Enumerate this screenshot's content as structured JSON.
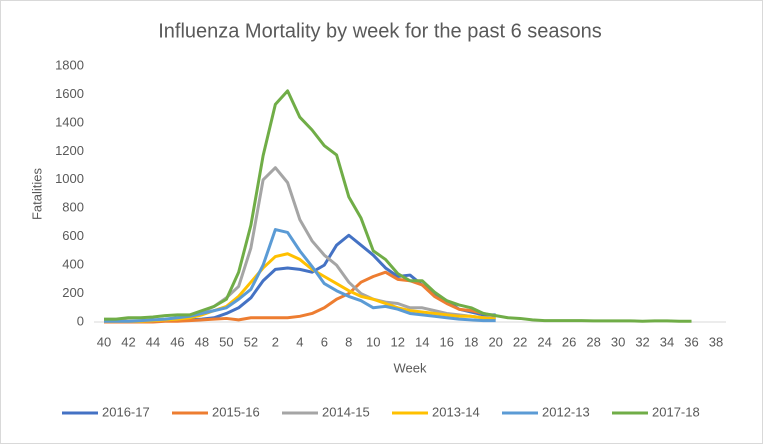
{
  "chart_data": {
    "type": "line",
    "title": "Influenza Mortality by week for the past 6 seasons",
    "x_label": "Week",
    "y_label": "Fatalities",
    "categories": [
      40,
      null,
      42,
      null,
      44,
      null,
      46,
      null,
      48,
      null,
      50,
      null,
      52,
      null,
      2,
      null,
      4,
      null,
      6,
      null,
      8,
      null,
      10,
      null,
      12,
      null,
      14,
      null,
      16,
      null,
      18,
      null,
      20,
      null,
      22,
      null,
      24,
      null,
      26,
      null,
      28,
      null,
      30,
      null,
      32,
      null,
      34,
      null,
      36,
      null,
      38
    ],
    "ylim": [
      0,
      1800
    ],
    "yticks": [
      0,
      200,
      400,
      600,
      800,
      1000,
      1200,
      1400,
      1600,
      1800
    ],
    "grid": false,
    "legend": "bottom",
    "series": [
      {
        "name": "2016-17",
        "color": "#4472c4",
        "values": [
          5,
          5,
          5,
          5,
          8,
          10,
          10,
          15,
          20,
          30,
          60,
          100,
          170,
          290,
          370,
          380,
          370,
          350,
          400,
          540,
          610,
          540,
          470,
          380,
          320,
          330,
          260,
          200,
          150,
          90,
          70,
          50,
          50,
          null,
          null,
          null,
          null,
          null,
          null,
          null,
          null,
          null,
          null,
          null,
          null,
          null,
          null,
          null,
          null,
          null,
          null
        ]
      },
      {
        "name": "2015-16",
        "color": "#ed7d31",
        "values": [
          0,
          0,
          0,
          0,
          0,
          5,
          5,
          10,
          15,
          20,
          25,
          15,
          30,
          30,
          30,
          30,
          40,
          60,
          100,
          160,
          200,
          280,
          320,
          350,
          300,
          290,
          260,
          180,
          130,
          90,
          80,
          60,
          40,
          null,
          null,
          null,
          null,
          null,
          null,
          null,
          null,
          null,
          null,
          null,
          null,
          null,
          null,
          null,
          null,
          null,
          null
        ]
      },
      {
        "name": "2014-15",
        "color": "#a5a5a5",
        "values": [
          5,
          5,
          5,
          5,
          10,
          15,
          20,
          40,
          70,
          110,
          170,
          250,
          520,
          1000,
          1085,
          980,
          720,
          570,
          470,
          400,
          280,
          200,
          160,
          140,
          130,
          100,
          100,
          80,
          60,
          50,
          40,
          30,
          25,
          null,
          null,
          null,
          null,
          null,
          null,
          null,
          null,
          null,
          null,
          null,
          null,
          null,
          null,
          null,
          null,
          null,
          null
        ]
      },
      {
        "name": "2013-14",
        "color": "#ffc000",
        "values": [
          5,
          5,
          5,
          5,
          10,
          15,
          20,
          30,
          50,
          80,
          110,
          180,
          280,
          380,
          460,
          480,
          440,
          370,
          320,
          270,
          220,
          180,
          160,
          130,
          100,
          80,
          70,
          60,
          50,
          40,
          40,
          30,
          20,
          null,
          null,
          null,
          null,
          null,
          null,
          null,
          null,
          null,
          null,
          null,
          null,
          null,
          null,
          null,
          null,
          null,
          null
        ]
      },
      {
        "name": "2012-13",
        "color": "#5b9bd5",
        "values": [
          5,
          5,
          5,
          10,
          15,
          20,
          30,
          40,
          60,
          80,
          100,
          160,
          230,
          400,
          650,
          630,
          500,
          390,
          270,
          220,
          180,
          150,
          100,
          110,
          90,
          60,
          50,
          40,
          30,
          20,
          15,
          10,
          10,
          null,
          null,
          null,
          null,
          null,
          null,
          null,
          null,
          null,
          null,
          null,
          null,
          null,
          null,
          null,
          null,
          null,
          null
        ]
      },
      {
        "name": "2017-18",
        "color": "#70ad47",
        "values": [
          20,
          20,
          30,
          30,
          35,
          45,
          50,
          50,
          80,
          110,
          160,
          350,
          680,
          1170,
          1530,
          1625,
          1440,
          1350,
          1240,
          1175,
          880,
          730,
          500,
          440,
          340,
          290,
          290,
          210,
          150,
          120,
          100,
          60,
          45,
          30,
          25,
          15,
          10,
          10,
          10,
          10,
          8,
          8,
          8,
          8,
          5,
          8,
          8,
          5,
          5,
          null,
          null
        ]
      }
    ]
  }
}
